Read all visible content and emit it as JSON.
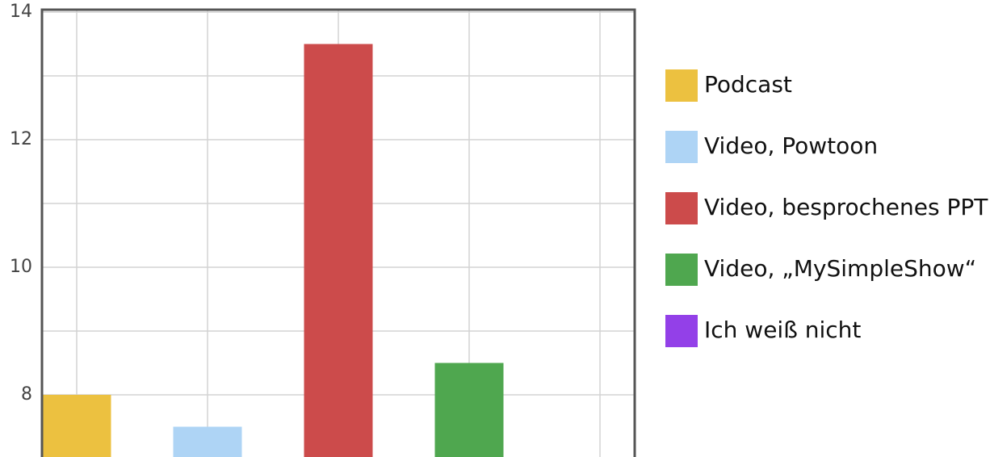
{
  "chart_data": {
    "type": "bar",
    "categories": [
      "Podcast",
      "Video, Powtoon",
      "Video, besprochenes PPT",
      "Video, „MySimpleShow“",
      "Ich weiß nicht"
    ],
    "values": [
      8,
      7.5,
      13.5,
      8.5,
      7
    ],
    "colors": [
      "#ecc140",
      "#aed4f5",
      "#cc4b4b",
      "#4fa74f",
      "#9340e8"
    ],
    "ylim": [
      7,
      14
    ],
    "yticks": [
      8,
      10,
      12,
      14
    ],
    "minor_yticks": [
      9,
      11,
      13
    ],
    "grid": true,
    "legend": "right"
  }
}
